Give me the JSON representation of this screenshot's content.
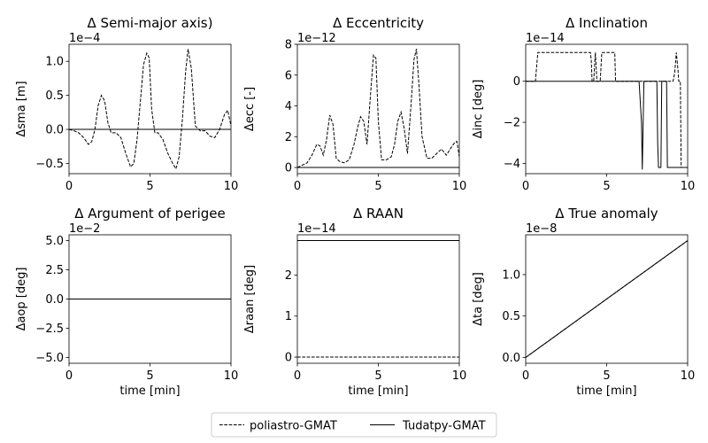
{
  "legend": {
    "entries": [
      {
        "label": "poliastro-GMAT",
        "dash": "dashed"
      },
      {
        "label": "Tudatpy-GMAT",
        "dash": "solid"
      }
    ],
    "placement": "bottom-center"
  },
  "colors": {
    "line": "#000000",
    "background": "#ffffff"
  },
  "chart_data": [
    {
      "type": "line",
      "title": "Δ Semi-major axis)",
      "xlabel": "",
      "ylabel": "Δsma [m]",
      "offset_label": "1e−4",
      "xlim": [
        0,
        10
      ],
      "ylim": [
        -0.65,
        1.25
      ],
      "xticks": [
        0,
        5,
        10
      ],
      "yticks": [
        -0.5,
        0.0,
        0.5,
        1.0
      ],
      "ytick_labels": [
        "−0.5",
        "0.0",
        "0.5",
        "1.0"
      ],
      "series": [
        {
          "name": "poliastro-GMAT",
          "dash": "dashed",
          "x": [
            0,
            0.3,
            0.6,
            0.9,
            1.2,
            1.4,
            1.6,
            1.8,
            2.0,
            2.2,
            2.4,
            2.6,
            2.9,
            3.2,
            3.5,
            3.8,
            4.0,
            4.2,
            4.4,
            4.6,
            4.8,
            4.95,
            5.1,
            5.3,
            5.5,
            5.8,
            6.1,
            6.4,
            6.6,
            6.8,
            7.0,
            7.2,
            7.35,
            7.55,
            7.8,
            8.1,
            8.4,
            8.7,
            9.0,
            9.3,
            9.6,
            9.8,
            10.0
          ],
          "y": [
            0.0,
            -0.02,
            -0.05,
            -0.12,
            -0.22,
            -0.18,
            0.0,
            0.35,
            0.5,
            0.42,
            0.1,
            -0.05,
            -0.05,
            -0.12,
            -0.35,
            -0.55,
            -0.5,
            -0.15,
            0.4,
            0.95,
            1.12,
            1.05,
            0.3,
            -0.05,
            -0.05,
            -0.15,
            -0.35,
            -0.5,
            -0.58,
            -0.4,
            0.15,
            0.85,
            1.18,
            0.9,
            0.05,
            -0.02,
            -0.02,
            -0.1,
            -0.12,
            0.0,
            0.22,
            0.28,
            0.05
          ]
        },
        {
          "name": "Tudatpy-GMAT",
          "dash": "solid",
          "x": [
            0,
            10
          ],
          "y": [
            0,
            0
          ]
        }
      ]
    },
    {
      "type": "line",
      "title": "Δ Eccentricity",
      "xlabel": "",
      "ylabel": "Δecc [-]",
      "offset_label": "1e−12",
      "xlim": [
        0,
        10
      ],
      "ylim": [
        -0.4,
        8.0
      ],
      "xticks": [
        0,
        5,
        10
      ],
      "yticks": [
        0,
        2,
        4,
        6,
        8
      ],
      "ytick_labels": [
        "0",
        "2",
        "4",
        "6",
        "8"
      ],
      "series": [
        {
          "name": "poliastro-GMAT",
          "dash": "dashed",
          "x": [
            0,
            0.3,
            0.6,
            0.9,
            1.2,
            1.4,
            1.6,
            1.8,
            2.0,
            2.2,
            2.4,
            2.6,
            2.9,
            3.2,
            3.5,
            3.7,
            3.9,
            4.1,
            4.3,
            4.5,
            4.7,
            4.85,
            5.0,
            5.2,
            5.5,
            5.8,
            6.0,
            6.2,
            6.4,
            6.6,
            6.8,
            7.0,
            7.2,
            7.35,
            7.5,
            7.7,
            8.0,
            8.3,
            8.6,
            8.9,
            9.2,
            9.5,
            9.7,
            9.85,
            10.0
          ],
          "y": [
            0.0,
            0.15,
            0.3,
            0.8,
            1.5,
            1.4,
            0.8,
            1.8,
            3.4,
            2.8,
            0.6,
            0.4,
            0.3,
            0.5,
            1.5,
            2.5,
            3.3,
            3.0,
            1.5,
            4.5,
            7.3,
            7.1,
            3.0,
            0.5,
            0.5,
            0.7,
            1.5,
            3.0,
            3.6,
            2.5,
            0.9,
            3.8,
            7.0,
            7.7,
            5.5,
            2.0,
            0.6,
            0.6,
            0.9,
            1.2,
            0.8,
            1.3,
            1.6,
            1.7,
            0.7
          ]
        },
        {
          "name": "Tudatpy-GMAT",
          "dash": "solid",
          "x": [
            0,
            10
          ],
          "y": [
            0,
            0
          ]
        }
      ]
    },
    {
      "type": "line",
      "title": "Δ Inclination",
      "xlabel": "",
      "ylabel": "Δinc [deg]",
      "offset_label": "1e−14",
      "xlim": [
        0,
        10
      ],
      "ylim": [
        -4.5,
        1.8
      ],
      "xticks": [
        0,
        5,
        10
      ],
      "yticks": [
        -4,
        -2,
        0
      ],
      "ytick_labels": [
        "−4",
        "−2",
        "0"
      ],
      "series": [
        {
          "name": "poliastro-GMAT",
          "dash": "dashed",
          "x": [
            0,
            0.55,
            0.6,
            0.75,
            4.0,
            4.05,
            4.1,
            4.2,
            4.3,
            4.4,
            4.45,
            4.55,
            4.6,
            4.7,
            4.75,
            4.8,
            5.5,
            5.55,
            5.6,
            9.1,
            9.2,
            9.3,
            9.4,
            9.45,
            9.55,
            9.6,
            9.7,
            10.0
          ],
          "y": [
            0,
            0,
            0,
            1.4,
            1.4,
            1.0,
            0,
            0,
            1.4,
            0,
            0,
            0,
            0,
            1.4,
            1.4,
            1.4,
            1.4,
            0,
            0,
            0,
            0.4,
            1.4,
            0.6,
            0,
            0,
            -4.2,
            -4.2,
            -4.2
          ]
        },
        {
          "name": "Tudatpy-GMAT",
          "dash": "solid",
          "x": [
            0,
            6.9,
            7.0,
            7.15,
            7.2,
            7.3,
            8.1,
            8.15,
            8.2,
            8.35,
            8.4,
            8.6,
            8.7,
            8.75,
            8.8,
            10.0
          ],
          "y": [
            0,
            0,
            0,
            -2.0,
            -4.3,
            0,
            0,
            -3.0,
            -4.2,
            -4.2,
            0,
            0,
            0,
            -4.2,
            -4.2,
            -4.2
          ]
        }
      ]
    },
    {
      "type": "line",
      "title": "Δ Argument of perigee",
      "xlabel": "time [min]",
      "ylabel": "Δaop [deg]",
      "offset_label": "1e−2",
      "xlim": [
        0,
        10
      ],
      "ylim": [
        -5.5,
        5.5
      ],
      "xticks": [
        0,
        5,
        10
      ],
      "yticks": [
        -5.0,
        -2.5,
        0.0,
        2.5,
        5.0
      ],
      "ytick_labels": [
        "−5.0",
        "−2.5",
        "0.0",
        "2.5",
        "5.0"
      ],
      "series": [
        {
          "name": "poliastro-GMAT",
          "dash": "dashed",
          "x": [
            0,
            10
          ],
          "y": [
            0,
            0
          ]
        },
        {
          "name": "Tudatpy-GMAT",
          "dash": "solid",
          "x": [
            0,
            10
          ],
          "y": [
            0,
            0
          ]
        }
      ]
    },
    {
      "type": "line",
      "title": "Δ RAAN",
      "xlabel": "time [min]",
      "ylabel": "Δraan [deg]",
      "offset_label": "1e−14",
      "xlim": [
        0,
        10
      ],
      "ylim": [
        -0.15,
        2.98
      ],
      "xticks": [
        0,
        5,
        10
      ],
      "yticks": [
        0,
        1,
        2
      ],
      "ytick_labels": [
        "0",
        "1",
        "2"
      ],
      "series": [
        {
          "name": "poliastro-GMAT",
          "dash": "dashed",
          "x": [
            0,
            10
          ],
          "y": [
            0,
            0
          ]
        },
        {
          "name": "Tudatpy-GMAT",
          "dash": "solid",
          "x": [
            0,
            10
          ],
          "y": [
            2.84,
            2.84
          ]
        }
      ]
    },
    {
      "type": "line",
      "title": "Δ True anomaly",
      "xlabel": "time [min]",
      "ylabel": "Δta [deg]",
      "offset_label": "1e−8",
      "xlim": [
        0,
        10
      ],
      "ylim": [
        -0.07,
        1.48
      ],
      "xticks": [
        0,
        5,
        10
      ],
      "yticks": [
        0.0,
        0.5,
        1.0
      ],
      "ytick_labels": [
        "0.0",
        "0.5",
        "1.0"
      ],
      "series": [
        {
          "name": "poliastro-GMAT",
          "dash": "dashed",
          "x": [
            0,
            10
          ],
          "y": [
            0,
            1.41
          ]
        },
        {
          "name": "Tudatpy-GMAT",
          "dash": "solid",
          "x": [
            0,
            10
          ],
          "y": [
            0,
            1.41
          ]
        }
      ]
    }
  ]
}
